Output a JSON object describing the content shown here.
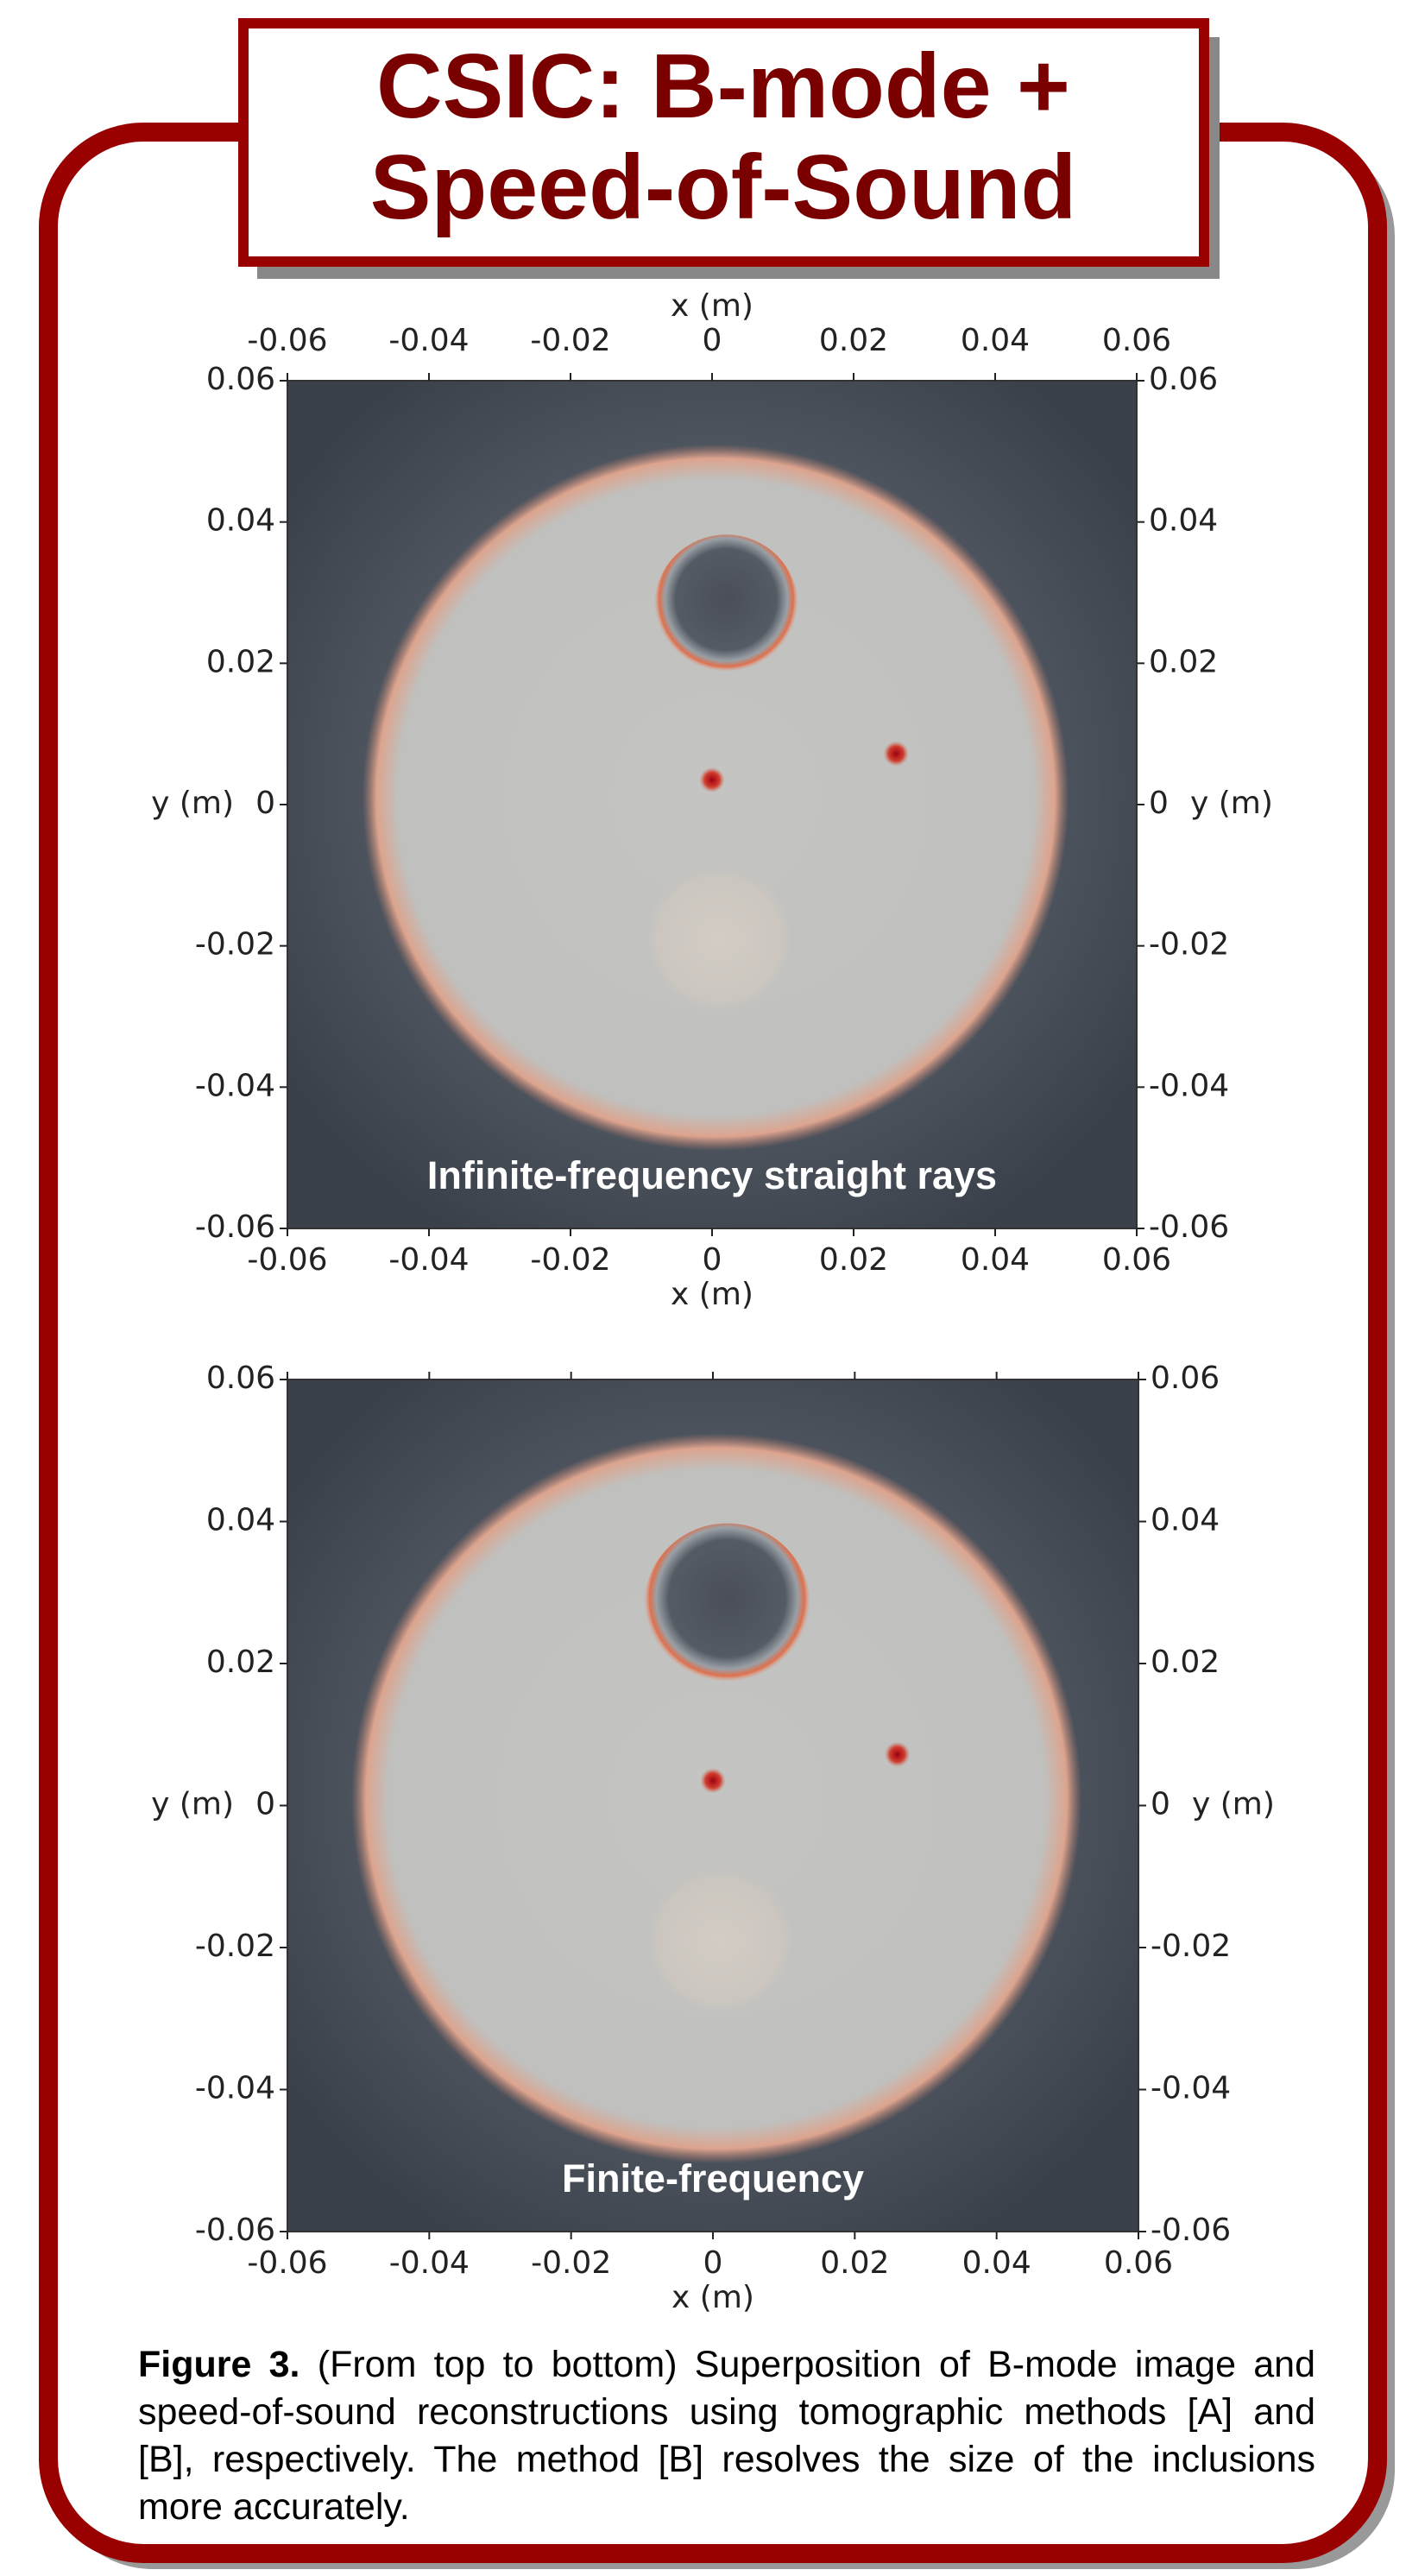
{
  "header": {
    "title_lines": [
      "CSIC: B-mode +",
      "Speed-of-Sound"
    ]
  },
  "figures": [
    {
      "x_label_top": "x (m)",
      "xticks_top": [
        -0.06,
        -0.04,
        -0.02,
        0,
        0.02,
        0.04,
        0.06
      ],
      "x_label": "x (m)",
      "xticks": [
        -0.06,
        -0.04,
        -0.02,
        0,
        0.02,
        0.04,
        0.06
      ],
      "y_label": "y (m)",
      "yticks": [
        -0.06,
        -0.04,
        -0.02,
        0,
        0.02,
        0.04,
        0.06
      ],
      "y_label_right": "y (m)",
      "yticks_right": [
        -0.06,
        -0.04,
        -0.02,
        0,
        0.02,
        0.04,
        0.06
      ],
      "caption": "Infinite-frequency straight rays"
    },
    {
      "x_label": "x (m)",
      "xticks": [
        -0.06,
        -0.04,
        -0.02,
        0,
        0.02,
        0.04,
        0.06
      ],
      "y_label": "y (m)",
      "yticks": [
        -0.06,
        -0.04,
        -0.02,
        0,
        0.02,
        0.04,
        0.06
      ],
      "y_label_right": "y (m)",
      "yticks_right": [
        -0.06,
        -0.04,
        -0.02,
        0,
        0.02,
        0.04,
        0.06
      ],
      "caption": "Finite-frequency"
    }
  ],
  "caption": {
    "label": "Figure 3.",
    "text": "(From top to bottom) Superposition of B-mode image and speed-of-sound reconstructions using tomographic methods [A] and [B], respectively. The method [B] resolves the size of the inclusions more accurately."
  }
}
